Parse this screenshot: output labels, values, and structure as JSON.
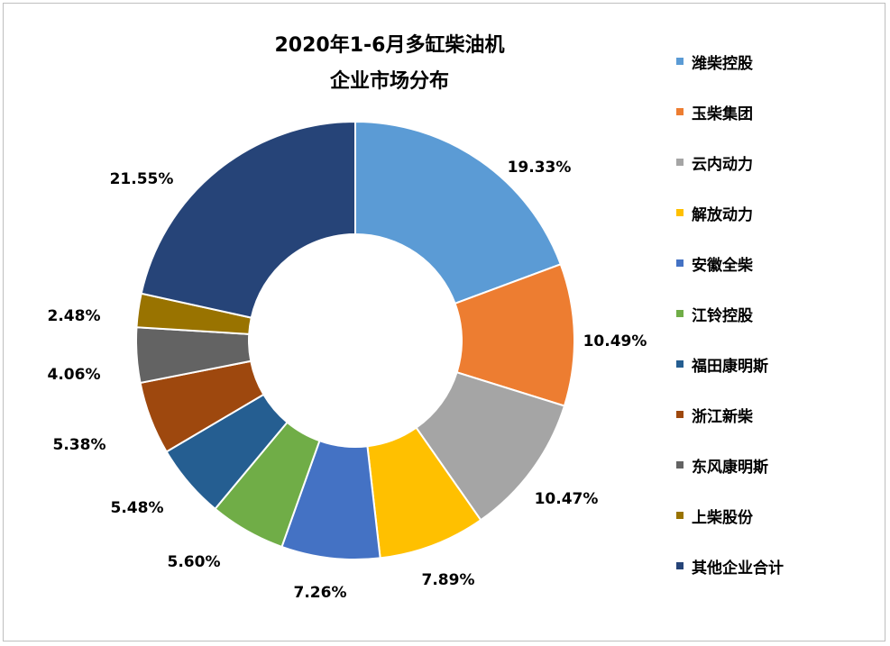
{
  "chart_data": {
    "type": "pie",
    "variant": "donut",
    "title_lines": [
      "2020年1-6月多缸柴油机",
      "企业市场分布"
    ],
    "categories": [
      "潍柴控股",
      "玉柴集团",
      "云内动力",
      "解放动力",
      "安徽全柴",
      "江铃控股",
      "福田康明斯",
      "浙江新柴",
      "东风康明斯",
      "上柴股份",
      "其他企业合计"
    ],
    "values": [
      19.33,
      10.49,
      10.47,
      7.89,
      7.26,
      5.6,
      5.48,
      5.38,
      4.06,
      2.48,
      21.55
    ],
    "labels": [
      "19.33%",
      "10.49%",
      "10.47%",
      "7.89%",
      "7.26%",
      "5.60%",
      "5.48%",
      "5.38%",
      "4.06%",
      "2.48%",
      "21.55%"
    ],
    "colors": [
      "#5b9bd5",
      "#ed7d31",
      "#a5a5a5",
      "#ffc000",
      "#4472c4",
      "#70ad47",
      "#255e91",
      "#9e480e",
      "#636363",
      "#997300",
      "#264478"
    ],
    "unit": "%",
    "legend_position": "right"
  }
}
